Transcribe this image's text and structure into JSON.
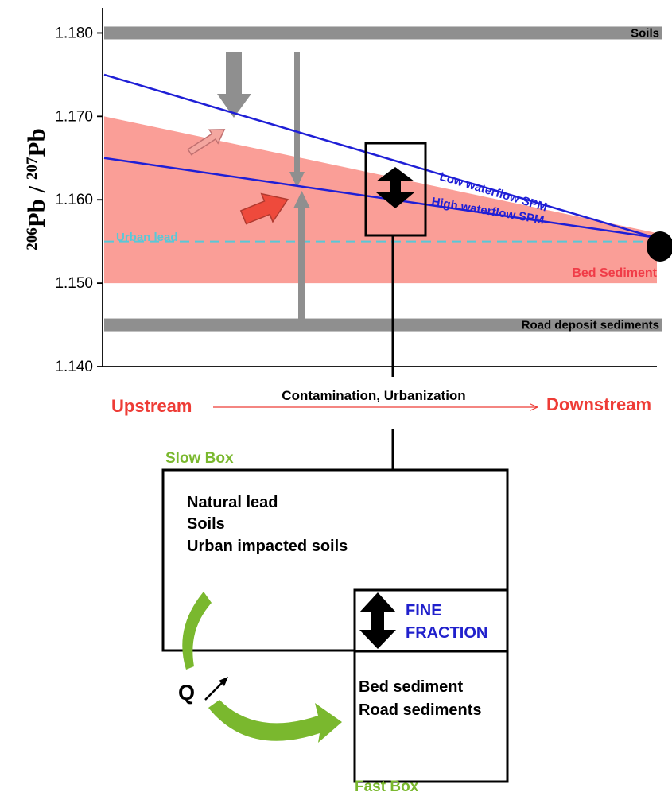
{
  "chart_data": {
    "type": "diagram",
    "y_axis": {
      "label": {
        "base1": "Pb",
        "sup1": "206",
        "sep": " / ",
        "base2": "Pb",
        "sup2": "207"
      },
      "ylim": [
        1.14,
        1.183
      ],
      "ticks": [
        "1.180",
        "1.170",
        "1.160",
        "1.150",
        "1.140"
      ]
    },
    "bands": [
      {
        "label": "Soils",
        "value": 1.18
      },
      {
        "label": "Road deposit sediments",
        "value": 1.145
      }
    ],
    "bed_sediment": {
      "label": "Bed Sediment",
      "upper_start": 1.17,
      "upper_end": 1.156,
      "lower": 1.15
    },
    "urban_lead": {
      "label": "Urban lead",
      "value": 1.155
    },
    "spm_lines": [
      {
        "label": "Low waterflow SPM",
        "start": 1.175,
        "end": 1.1555
      },
      {
        "label": "High waterflow SPM",
        "start": 1.165,
        "end": 1.1555
      }
    ],
    "x_axis": {
      "left": "Upstream",
      "center": "Contamination, Urbanization",
      "right": "Downstream"
    }
  },
  "boxes": {
    "slow": {
      "title": "Slow Box",
      "items": [
        "Natural lead",
        "Soils",
        "Urban impacted soils"
      ]
    },
    "fast": {
      "title": "Fast Box",
      "items": [
        "Bed sediment",
        "Road sediments"
      ]
    },
    "fine_fraction": [
      "FINE",
      "FRACTION"
    ],
    "flow_label": "Q"
  },
  "colors": {
    "band": "#8f8f8f",
    "bed_sediment": "#f98d85",
    "bed_label": "#f03c48",
    "spm_line": "#1f1fd6",
    "urban": "#58c8d8",
    "upstream": "#ee3c36",
    "box_title": "#7ab82e",
    "fine": "#2020cc"
  }
}
